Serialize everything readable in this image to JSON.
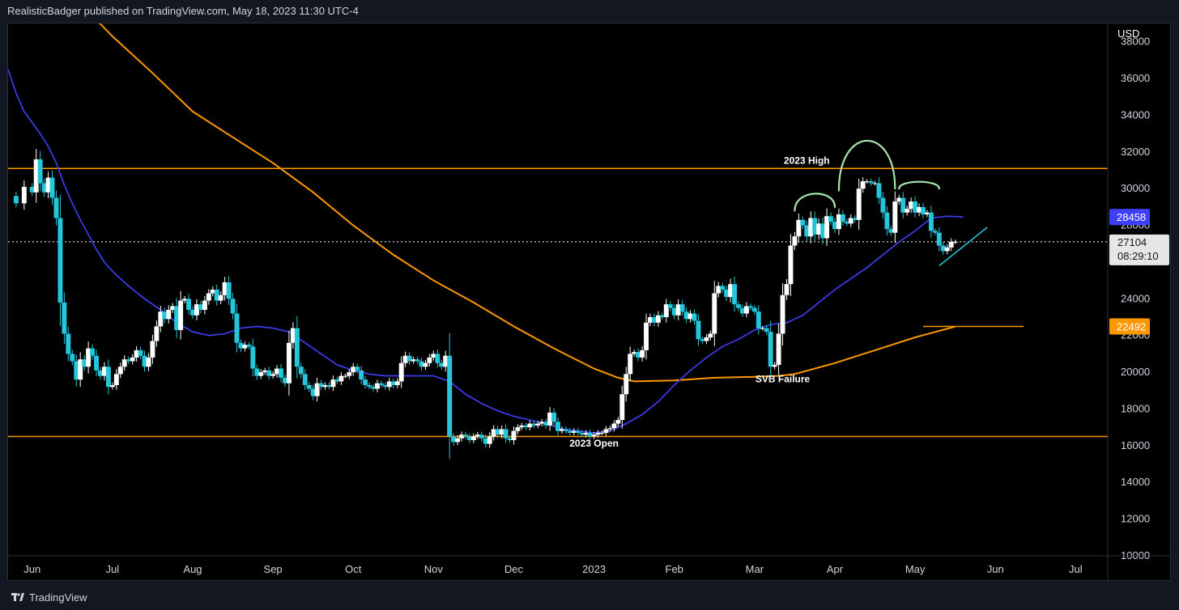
{
  "header": {
    "published_by": "RealisticBadger published on TradingView.com, May 18, 2023 11:30 UTC-4"
  },
  "footer": {
    "brand": "TradingView"
  },
  "chart_data": {
    "type": "candlestick",
    "currency": "USD",
    "ylim": [
      10000,
      39000
    ],
    "y_ticks": [
      10000,
      12000,
      14000,
      16000,
      18000,
      20000,
      22000,
      24000,
      26000,
      28000,
      30000,
      32000,
      34000,
      36000,
      38000
    ],
    "x_ticks": [
      "Jun",
      "Jul",
      "Aug",
      "Sep",
      "Oct",
      "Nov",
      "Dec",
      "2023",
      "Feb",
      "Mar",
      "Apr",
      "May",
      "Jun",
      "Jul"
    ],
    "x_tick_months": [
      0,
      1,
      2,
      3,
      4,
      5,
      6,
      7,
      8,
      9,
      10,
      11,
      12,
      13
    ],
    "x_range_months": [
      -0.3,
      13.4
    ],
    "colors": {
      "up": "#ffffff",
      "down": "#26c6da",
      "ma_short": "#3f3fff",
      "ma_long": "#ff9800",
      "levels": "#ff9800",
      "annotation": "#a5e6b0",
      "trendline": "#26c6da"
    },
    "price_closes": [
      [
        -0.3,
        29600
      ],
      [
        -0.2,
        29200
      ],
      [
        -0.1,
        30100
      ],
      [
        0.0,
        29800
      ],
      [
        0.05,
        31600
      ],
      [
        0.1,
        30300
      ],
      [
        0.15,
        29800
      ],
      [
        0.2,
        30600
      ],
      [
        0.25,
        29500
      ],
      [
        0.3,
        28400
      ],
      [
        0.35,
        23800
      ],
      [
        0.4,
        22100
      ],
      [
        0.45,
        21000
      ],
      [
        0.5,
        20600
      ],
      [
        0.55,
        19600
      ],
      [
        0.6,
        20700
      ],
      [
        0.65,
        20300
      ],
      [
        0.7,
        21300
      ],
      [
        0.75,
        20900
      ],
      [
        0.8,
        20100
      ],
      [
        0.85,
        19800
      ],
      [
        0.9,
        20300
      ],
      [
        0.95,
        19200
      ],
      [
        1.0,
        19300
      ],
      [
        1.05,
        19900
      ],
      [
        1.1,
        20300
      ],
      [
        1.15,
        20700
      ],
      [
        1.2,
        20600
      ],
      [
        1.25,
        20800
      ],
      [
        1.3,
        21200
      ],
      [
        1.35,
        20900
      ],
      [
        1.4,
        20300
      ],
      [
        1.45,
        20800
      ],
      [
        1.5,
        21700
      ],
      [
        1.55,
        22500
      ],
      [
        1.6,
        23300
      ],
      [
        1.65,
        22900
      ],
      [
        1.7,
        23400
      ],
      [
        1.75,
        23600
      ],
      [
        1.8,
        22300
      ],
      [
        1.85,
        23900
      ],
      [
        1.9,
        24000
      ],
      [
        1.95,
        23400
      ],
      [
        2.0,
        23100
      ],
      [
        2.05,
        23700
      ],
      [
        2.1,
        23400
      ],
      [
        2.15,
        23900
      ],
      [
        2.2,
        24300
      ],
      [
        2.25,
        24500
      ],
      [
        2.3,
        23900
      ],
      [
        2.35,
        24200
      ],
      [
        2.4,
        24900
      ],
      [
        2.45,
        24000
      ],
      [
        2.5,
        23200
      ],
      [
        2.55,
        21600
      ],
      [
        2.6,
        21300
      ],
      [
        2.65,
        21500
      ],
      [
        2.7,
        21400
      ],
      [
        2.75,
        20200
      ],
      [
        2.8,
        19800
      ],
      [
        2.85,
        20000
      ],
      [
        2.9,
        20100
      ],
      [
        2.95,
        19800
      ],
      [
        3.0,
        19900
      ],
      [
        3.05,
        20200
      ],
      [
        3.1,
        19700
      ],
      [
        3.15,
        19400
      ],
      [
        3.2,
        21600
      ],
      [
        3.25,
        22400
      ],
      [
        3.3,
        20300
      ],
      [
        3.35,
        19900
      ],
      [
        3.4,
        19300
      ],
      [
        3.45,
        19100
      ],
      [
        3.5,
        18700
      ],
      [
        3.55,
        19400
      ],
      [
        3.6,
        19200
      ],
      [
        3.65,
        19300
      ],
      [
        3.7,
        19200
      ],
      [
        3.75,
        19600
      ],
      [
        3.8,
        19500
      ],
      [
        3.85,
        19800
      ],
      [
        3.9,
        19800
      ],
      [
        3.95,
        20000
      ],
      [
        4.0,
        20300
      ],
      [
        4.05,
        20100
      ],
      [
        4.1,
        19600
      ],
      [
        4.15,
        19300
      ],
      [
        4.2,
        19200
      ],
      [
        4.25,
        19100
      ],
      [
        4.3,
        19400
      ],
      [
        4.35,
        19300
      ],
      [
        4.4,
        19200
      ],
      [
        4.45,
        19500
      ],
      [
        4.5,
        19300
      ],
      [
        4.55,
        19500
      ],
      [
        4.6,
        20500
      ],
      [
        4.65,
        20900
      ],
      [
        4.7,
        20600
      ],
      [
        4.75,
        20700
      ],
      [
        4.8,
        20600
      ],
      [
        4.85,
        20300
      ],
      [
        4.9,
        20500
      ],
      [
        4.95,
        20800
      ],
      [
        5.0,
        21000
      ],
      [
        5.05,
        20500
      ],
      [
        5.1,
        20300
      ],
      [
        5.15,
        20900
      ],
      [
        5.2,
        16500
      ],
      [
        5.25,
        16200
      ],
      [
        5.3,
        16400
      ],
      [
        5.35,
        16600
      ],
      [
        5.4,
        16500
      ],
      [
        5.45,
        16300
      ],
      [
        5.5,
        16500
      ],
      [
        5.55,
        16600
      ],
      [
        5.6,
        16400
      ],
      [
        5.65,
        16100
      ],
      [
        5.7,
        16500
      ],
      [
        5.75,
        16900
      ],
      [
        5.8,
        16600
      ],
      [
        5.85,
        16900
      ],
      [
        5.9,
        16400
      ],
      [
        5.95,
        16300
      ],
      [
        6.0,
        16800
      ],
      [
        6.05,
        17000
      ],
      [
        6.1,
        17100
      ],
      [
        6.15,
        17000
      ],
      [
        6.2,
        17200
      ],
      [
        6.25,
        17100
      ],
      [
        6.3,
        17200
      ],
      [
        6.35,
        17300
      ],
      [
        6.4,
        17100
      ],
      [
        6.45,
        17800
      ],
      [
        6.5,
        17300
      ],
      [
        6.55,
        16800
      ],
      [
        6.6,
        16900
      ],
      [
        6.65,
        16800
      ],
      [
        6.7,
        16700
      ],
      [
        6.75,
        16800
      ],
      [
        6.8,
        16700
      ],
      [
        6.85,
        16600
      ],
      [
        6.9,
        16700
      ],
      [
        6.95,
        16500
      ],
      [
        7.0,
        16600
      ],
      [
        7.05,
        16700
      ],
      [
        7.1,
        16700
      ],
      [
        7.15,
        16900
      ],
      [
        7.2,
        16950
      ],
      [
        7.25,
        17200
      ],
      [
        7.3,
        17400
      ],
      [
        7.35,
        18800
      ],
      [
        7.4,
        19900
      ],
      [
        7.45,
        21000
      ],
      [
        7.5,
        21100
      ],
      [
        7.55,
        20800
      ],
      [
        7.6,
        21200
      ],
      [
        7.65,
        22700
      ],
      [
        7.7,
        23000
      ],
      [
        7.75,
        22700
      ],
      [
        7.8,
        23100
      ],
      [
        7.85,
        23000
      ],
      [
        7.9,
        23700
      ],
      [
        7.95,
        23500
      ],
      [
        8.0,
        23100
      ],
      [
        8.05,
        23700
      ],
      [
        8.1,
        23300
      ],
      [
        8.15,
        22900
      ],
      [
        8.2,
        23200
      ],
      [
        8.25,
        22800
      ],
      [
        8.3,
        21800
      ],
      [
        8.35,
        21700
      ],
      [
        8.4,
        21900
      ],
      [
        8.45,
        22100
      ],
      [
        8.5,
        24300
      ],
      [
        8.55,
        24700
      ],
      [
        8.6,
        24500
      ],
      [
        8.65,
        24100
      ],
      [
        8.7,
        24800
      ],
      [
        8.75,
        23700
      ],
      [
        8.8,
        23500
      ],
      [
        8.85,
        23200
      ],
      [
        8.9,
        23600
      ],
      [
        8.95,
        23500
      ],
      [
        9.0,
        23300
      ],
      [
        9.05,
        22400
      ],
      [
        9.1,
        22400
      ],
      [
        9.15,
        22200
      ],
      [
        9.2,
        20300
      ],
      [
        9.25,
        20400
      ],
      [
        9.3,
        22100
      ],
      [
        9.35,
        24200
      ],
      [
        9.4,
        24800
      ],
      [
        9.45,
        26900
      ],
      [
        9.5,
        27400
      ],
      [
        9.55,
        28300
      ],
      [
        9.6,
        28000
      ],
      [
        9.65,
        27400
      ],
      [
        9.7,
        28400
      ],
      [
        9.75,
        27500
      ],
      [
        9.8,
        28100
      ],
      [
        9.85,
        27300
      ],
      [
        9.9,
        28500
      ],
      [
        9.95,
        28200
      ],
      [
        10.0,
        27800
      ],
      [
        10.05,
        28600
      ],
      [
        10.1,
        28200
      ],
      [
        10.15,
        28100
      ],
      [
        10.2,
        28400
      ],
      [
        10.25,
        28300
      ],
      [
        10.3,
        30000
      ],
      [
        10.35,
        30400
      ],
      [
        10.4,
        30400
      ],
      [
        10.45,
        30300
      ],
      [
        10.5,
        30300
      ],
      [
        10.55,
        29500
      ],
      [
        10.6,
        28700
      ],
      [
        10.65,
        27800
      ],
      [
        10.7,
        27600
      ],
      [
        10.75,
        29300
      ],
      [
        10.8,
        29500
      ],
      [
        10.85,
        28700
      ],
      [
        10.9,
        28900
      ],
      [
        10.95,
        29300
      ],
      [
        11.0,
        28700
      ],
      [
        11.05,
        29000
      ],
      [
        11.1,
        28600
      ],
      [
        11.15,
        28700
      ],
      [
        11.2,
        27700
      ],
      [
        11.25,
        27600
      ],
      [
        11.3,
        26900
      ],
      [
        11.35,
        26600
      ],
      [
        11.4,
        26800
      ],
      [
        11.45,
        27100
      ],
      [
        11.5,
        27104
      ]
    ],
    "ma_short_points": [
      [
        -0.3,
        36500
      ],
      [
        -0.2,
        35200
      ],
      [
        -0.1,
        34200
      ],
      [
        0.0,
        33600
      ],
      [
        0.1,
        33000
      ],
      [
        0.2,
        32300
      ],
      [
        0.3,
        31400
      ],
      [
        0.4,
        30200
      ],
      [
        0.5,
        29200
      ],
      [
        0.6,
        28300
      ],
      [
        0.7,
        27500
      ],
      [
        0.8,
        26700
      ],
      [
        0.9,
        26000
      ],
      [
        1.0,
        25500
      ],
      [
        1.2,
        24700
      ],
      [
        1.4,
        24000
      ],
      [
        1.6,
        23400
      ],
      [
        1.8,
        22700
      ],
      [
        2.0,
        22200
      ],
      [
        2.2,
        22000
      ],
      [
        2.4,
        22100
      ],
      [
        2.6,
        22400
      ],
      [
        2.8,
        22500
      ],
      [
        3.0,
        22400
      ],
      [
        3.2,
        22200
      ],
      [
        3.4,
        21600
      ],
      [
        3.6,
        21000
      ],
      [
        3.8,
        20400
      ],
      [
        4.0,
        20100
      ],
      [
        4.2,
        19900
      ],
      [
        4.4,
        19800
      ],
      [
        4.6,
        19800
      ],
      [
        4.8,
        19800
      ],
      [
        5.0,
        19800
      ],
      [
        5.2,
        19500
      ],
      [
        5.4,
        18800
      ],
      [
        5.6,
        18300
      ],
      [
        5.8,
        17900
      ],
      [
        6.0,
        17600
      ],
      [
        6.2,
        17400
      ],
      [
        6.4,
        17200
      ],
      [
        6.6,
        16900
      ],
      [
        6.8,
        16800
      ],
      [
        7.0,
        16700
      ],
      [
        7.2,
        16800
      ],
      [
        7.4,
        17200
      ],
      [
        7.6,
        17700
      ],
      [
        7.8,
        18400
      ],
      [
        8.0,
        19300
      ],
      [
        8.2,
        20100
      ],
      [
        8.4,
        20800
      ],
      [
        8.6,
        21400
      ],
      [
        8.8,
        21800
      ],
      [
        9.0,
        22300
      ],
      [
        9.2,
        22600
      ],
      [
        9.4,
        22700
      ],
      [
        9.6,
        23100
      ],
      [
        9.8,
        23800
      ],
      [
        10.0,
        24500
      ],
      [
        10.2,
        25100
      ],
      [
        10.4,
        25700
      ],
      [
        10.6,
        26400
      ],
      [
        10.8,
        27100
      ],
      [
        11.0,
        27700
      ],
      [
        11.2,
        28400
      ],
      [
        11.4,
        28500
      ],
      [
        11.6,
        28458
      ]
    ],
    "ma_long_points": [
      [
        0.8,
        39200
      ],
      [
        1.0,
        38300
      ],
      [
        1.5,
        36300
      ],
      [
        2.0,
        34200
      ],
      [
        2.5,
        32800
      ],
      [
        3.0,
        31400
      ],
      [
        3.5,
        29800
      ],
      [
        4.0,
        28000
      ],
      [
        4.5,
        26400
      ],
      [
        5.0,
        25000
      ],
      [
        5.5,
        23800
      ],
      [
        6.0,
        22500
      ],
      [
        6.5,
        21300
      ],
      [
        7.0,
        20200
      ],
      [
        7.3,
        19700
      ],
      [
        7.5,
        19500
      ],
      [
        8.0,
        19550
      ],
      [
        8.5,
        19700
      ],
      [
        9.0,
        19750
      ],
      [
        9.3,
        19800
      ],
      [
        9.5,
        19900
      ],
      [
        10.0,
        20500
      ],
      [
        10.5,
        21200
      ],
      [
        11.0,
        21900
      ],
      [
        11.5,
        22492
      ]
    ],
    "horizontal_levels": [
      {
        "value": 31100,
        "x_from": -0.3,
        "x_to": 13.4
      },
      {
        "value": 16500,
        "x_from": -0.3,
        "x_to": 13.4
      }
    ],
    "current_price": 27104,
    "countdown": "08:29:10",
    "price_labels": [
      {
        "value": 28458,
        "color": "#3f3fff",
        "text": "28458"
      },
      {
        "value": 22492,
        "color": "#ff9800",
        "text": "22492"
      }
    ],
    "annotations": [
      {
        "text": "2023 High",
        "x": 9.65,
        "y": 31350
      },
      {
        "text": "2023 Open",
        "x": 7.0,
        "y": 15950
      },
      {
        "text": "SVB Failure",
        "x": 9.35,
        "y": 19450
      }
    ],
    "ma_long_marker": {
      "value": 22492,
      "x_from": 11.1,
      "x_to": 12.35
    },
    "trendline": {
      "from": [
        11.3,
        25800
      ],
      "to": [
        11.9,
        27900
      ]
    },
    "pattern_arcs": [
      {
        "from": [
          9.5,
          28800
        ],
        "peak": [
          9.75,
          30000
        ],
        "to": [
          10.0,
          29000
        ]
      },
      {
        "from": [
          10.05,
          29900
        ],
        "peak": [
          10.4,
          33500
        ],
        "to": [
          10.75,
          30000
        ]
      },
      {
        "from": [
          10.8,
          30000
        ],
        "peak": [
          11.1,
          30500
        ],
        "to": [
          11.3,
          30000
        ]
      }
    ]
  }
}
